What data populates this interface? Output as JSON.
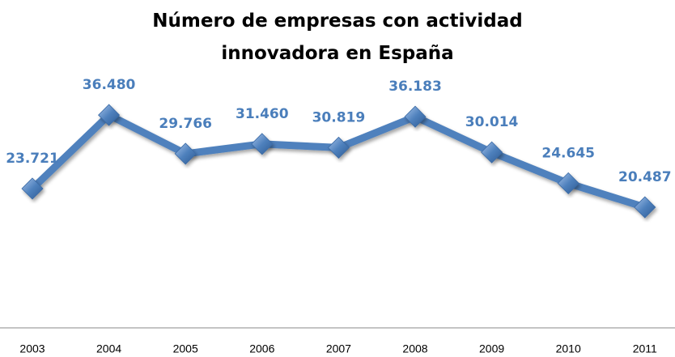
{
  "chart_data": {
    "type": "line",
    "title": "Número de empresas con actividad innovadora en España",
    "categories": [
      "2003",
      "2004",
      "2005",
      "2006",
      "2007",
      "2008",
      "2009",
      "2010",
      "2011"
    ],
    "series": [
      {
        "color": "#4f81bd",
        "values": [
          23721,
          36480,
          29766,
          31460,
          30819,
          36183,
          30014,
          24645,
          20487
        ],
        "value_labels": [
          "23.721",
          "36.480",
          "29.766",
          "31.460",
          "30.819",
          "36.183",
          "30.014",
          "24.645",
          "20.487"
        ]
      }
    ],
    "ylim": [
      0,
      40000
    ]
  }
}
